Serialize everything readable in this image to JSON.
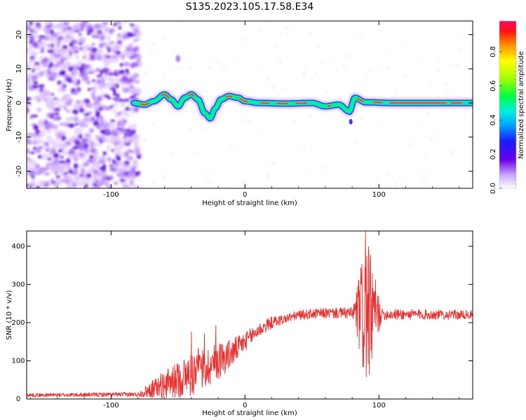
{
  "title": "S135.2023.105.17.58.E34",
  "colors": {
    "snr_line": "#e8302f",
    "axis": "#000000",
    "ridge_core": "#e8302f",
    "ridge_mid": "#00ff66",
    "ridge_outer": "#00d2ff",
    "ridge_edge": "#2a28e6",
    "noise_dark": "#5a00d8",
    "noise_light": "#d8b8ff"
  },
  "chart_data": [
    {
      "type": "heatmap",
      "name": "spectrogram",
      "xlabel": "Height of straight line (km)",
      "ylabel": "Frequency (Hz)",
      "xlim": [
        -163,
        170
      ],
      "ylim": [
        -25,
        24
      ],
      "xticks": [
        -100,
        0,
        100
      ],
      "yticks": [
        -20,
        -10,
        0,
        10,
        20
      ],
      "colorbar": {
        "label": "Normalized spectral amplitude",
        "ticks": [
          "0.0",
          "0.2",
          "0.4",
          "0.6",
          "0.8"
        ],
        "range": [
          0,
          0.98
        ]
      },
      "noise_region_x": [
        -163,
        -83
      ],
      "ridge": [
        {
          "x": -83,
          "f": 0.0
        },
        {
          "x": -75,
          "f": -0.5
        },
        {
          "x": -68,
          "f": 0.5
        },
        {
          "x": -60,
          "f": 2.5
        },
        {
          "x": -55,
          "f": 1.0
        },
        {
          "x": -50,
          "f": -1.0
        },
        {
          "x": -45,
          "f": 1.5
        },
        {
          "x": -40,
          "f": 2.5
        },
        {
          "x": -35,
          "f": 1.0
        },
        {
          "x": -30,
          "f": -3.0
        },
        {
          "x": -26,
          "f": -4.5
        },
        {
          "x": -22,
          "f": -1.5
        },
        {
          "x": -18,
          "f": 1.0
        },
        {
          "x": -12,
          "f": 2.0
        },
        {
          "x": -5,
          "f": 1.5
        },
        {
          "x": 0,
          "f": 0.5
        },
        {
          "x": 10,
          "f": 0.0
        },
        {
          "x": 30,
          "f": -0.2
        },
        {
          "x": 50,
          "f": 0.0
        },
        {
          "x": 60,
          "f": -1.0
        },
        {
          "x": 70,
          "f": -0.5
        },
        {
          "x": 78,
          "f": -2.5
        },
        {
          "x": 82,
          "f": 1.5
        },
        {
          "x": 90,
          "f": 0.2
        },
        {
          "x": 110,
          "f": 0.0
        },
        {
          "x": 140,
          "f": 0.0
        },
        {
          "x": 170,
          "f": 0.0
        }
      ]
    },
    {
      "type": "line",
      "name": "snr",
      "xlabel": "Height of straight line (km)",
      "ylabel": "SNR (10 * v/v)",
      "xlim": [
        -163,
        170
      ],
      "ylim": [
        0,
        440
      ],
      "xticks": [
        -100,
        0,
        100
      ],
      "yticks": [
        0,
        100,
        200,
        300,
        400
      ],
      "trend": [
        {
          "x": -163,
          "y": 10
        },
        {
          "x": -80,
          "y": 12
        },
        {
          "x": -70,
          "y": 25
        },
        {
          "x": -50,
          "y": 50
        },
        {
          "x": -30,
          "y": 80
        },
        {
          "x": -10,
          "y": 120
        },
        {
          "x": 0,
          "y": 150
        },
        {
          "x": 10,
          "y": 180
        },
        {
          "x": 20,
          "y": 200
        },
        {
          "x": 40,
          "y": 220
        },
        {
          "x": 60,
          "y": 225
        },
        {
          "x": 80,
          "y": 225
        },
        {
          "x": 100,
          "y": 222
        },
        {
          "x": 170,
          "y": 220
        }
      ],
      "noise_amplitude": [
        {
          "x": -163,
          "a": 5
        },
        {
          "x": -80,
          "a": 6
        },
        {
          "x": -65,
          "a": 30
        },
        {
          "x": -40,
          "a": 60
        },
        {
          "x": -20,
          "a": 50
        },
        {
          "x": 0,
          "a": 25
        },
        {
          "x": 30,
          "a": 12
        },
        {
          "x": 80,
          "a": 15
        },
        {
          "x": 86,
          "a": 120
        },
        {
          "x": 90,
          "a": 210
        },
        {
          "x": 96,
          "a": 120
        },
        {
          "x": 102,
          "a": 15
        },
        {
          "x": 170,
          "a": 12
        }
      ],
      "peak": {
        "x": 90,
        "y": 440
      }
    }
  ]
}
